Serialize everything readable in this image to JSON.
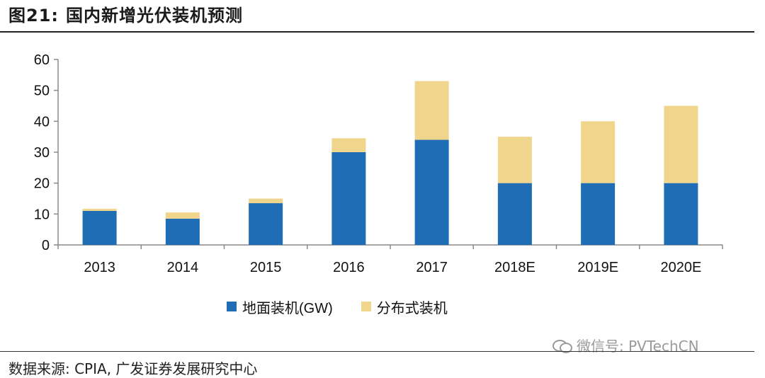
{
  "figure": {
    "label": "图21:",
    "title": "国内新增光伏装机预测",
    "source": "数据来源: CPIA, 广发证券发展研究中心",
    "watermark": "微信号: PVTechCN"
  },
  "chart_data": {
    "type": "bar",
    "stacked": true,
    "categories": [
      "2013",
      "2014",
      "2015",
      "2016",
      "2017",
      "2018E",
      "2019E",
      "2020E"
    ],
    "series": [
      {
        "name": "地面装机(GW)",
        "color": "#1f6db5",
        "values": [
          11,
          8.5,
          13.5,
          30,
          34,
          20,
          20,
          20
        ]
      },
      {
        "name": "分布式装机",
        "color": "#f0d58c",
        "values": [
          0.7,
          2.0,
          1.5,
          4.5,
          19,
          15,
          20,
          25
        ]
      }
    ],
    "ylim": [
      0,
      60
    ],
    "yticks": [
      0,
      10,
      20,
      30,
      40,
      50,
      60
    ],
    "xlabel": "",
    "ylabel": "",
    "grid": false,
    "legend_position": "bottom"
  }
}
